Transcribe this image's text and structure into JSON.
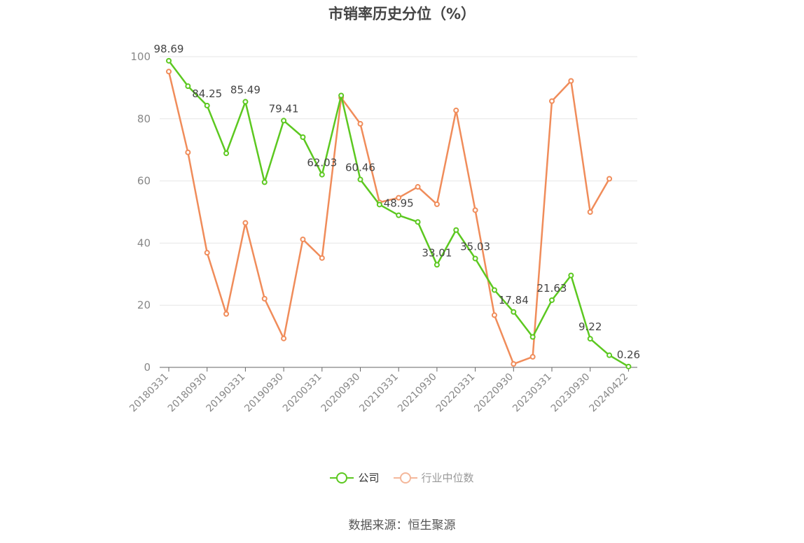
{
  "chart_data": {
    "type": "line",
    "title": "市销率历史分位（%）",
    "ylim": [
      0,
      100
    ],
    "yticks": [
      "0",
      "20",
      "40",
      "60",
      "80",
      "100"
    ],
    "xtick_labels": [
      "20180331",
      "20180930",
      "20190331",
      "20190930",
      "20200331",
      "20200930",
      "20210331",
      "20210930",
      "20220331",
      "20220930",
      "20230331",
      "20230930",
      "20240422"
    ],
    "grid": true,
    "legend_position": "bottom",
    "series": [
      {
        "name": "公司",
        "color": "#5cc820",
        "values": [
          98.69,
          90.5,
          84.25,
          68.9,
          85.49,
          59.6,
          79.41,
          74.1,
          62.03,
          87.5,
          60.46,
          52.4,
          48.95,
          46.8,
          33.01,
          44.2,
          35.03,
          24.9,
          17.84,
          9.8,
          21.63,
          29.6,
          9.22,
          3.9,
          0.26
        ],
        "labels": [
          "98.69",
          "",
          "84.25",
          "",
          "85.49",
          "",
          "79.41",
          "",
          "62.03",
          "",
          "60.46",
          "",
          "48.95",
          "",
          "33.01",
          "",
          "35.03",
          "",
          "17.84",
          "",
          "21.63",
          "",
          "9.22",
          "",
          "0.26"
        ]
      },
      {
        "name": "行业中位数",
        "color": "#f08c5a",
        "values": [
          95.2,
          69.2,
          36.9,
          17.2,
          46.5,
          22.1,
          9.3,
          41.2,
          35.2,
          86.8,
          78.4,
          53.1,
          54.6,
          58.1,
          52.5,
          82.7,
          50.6,
          16.8,
          1.1,
          3.4,
          85.7,
          92.2,
          50.0,
          60.7,
          null
        ]
      }
    ]
  },
  "legend": [
    {
      "label": "公司",
      "color": "#5cc820",
      "muted": false
    },
    {
      "label": "行业中位数",
      "color": "#f4b79a",
      "muted": true
    }
  ],
  "source": "数据来源：恒生聚源"
}
